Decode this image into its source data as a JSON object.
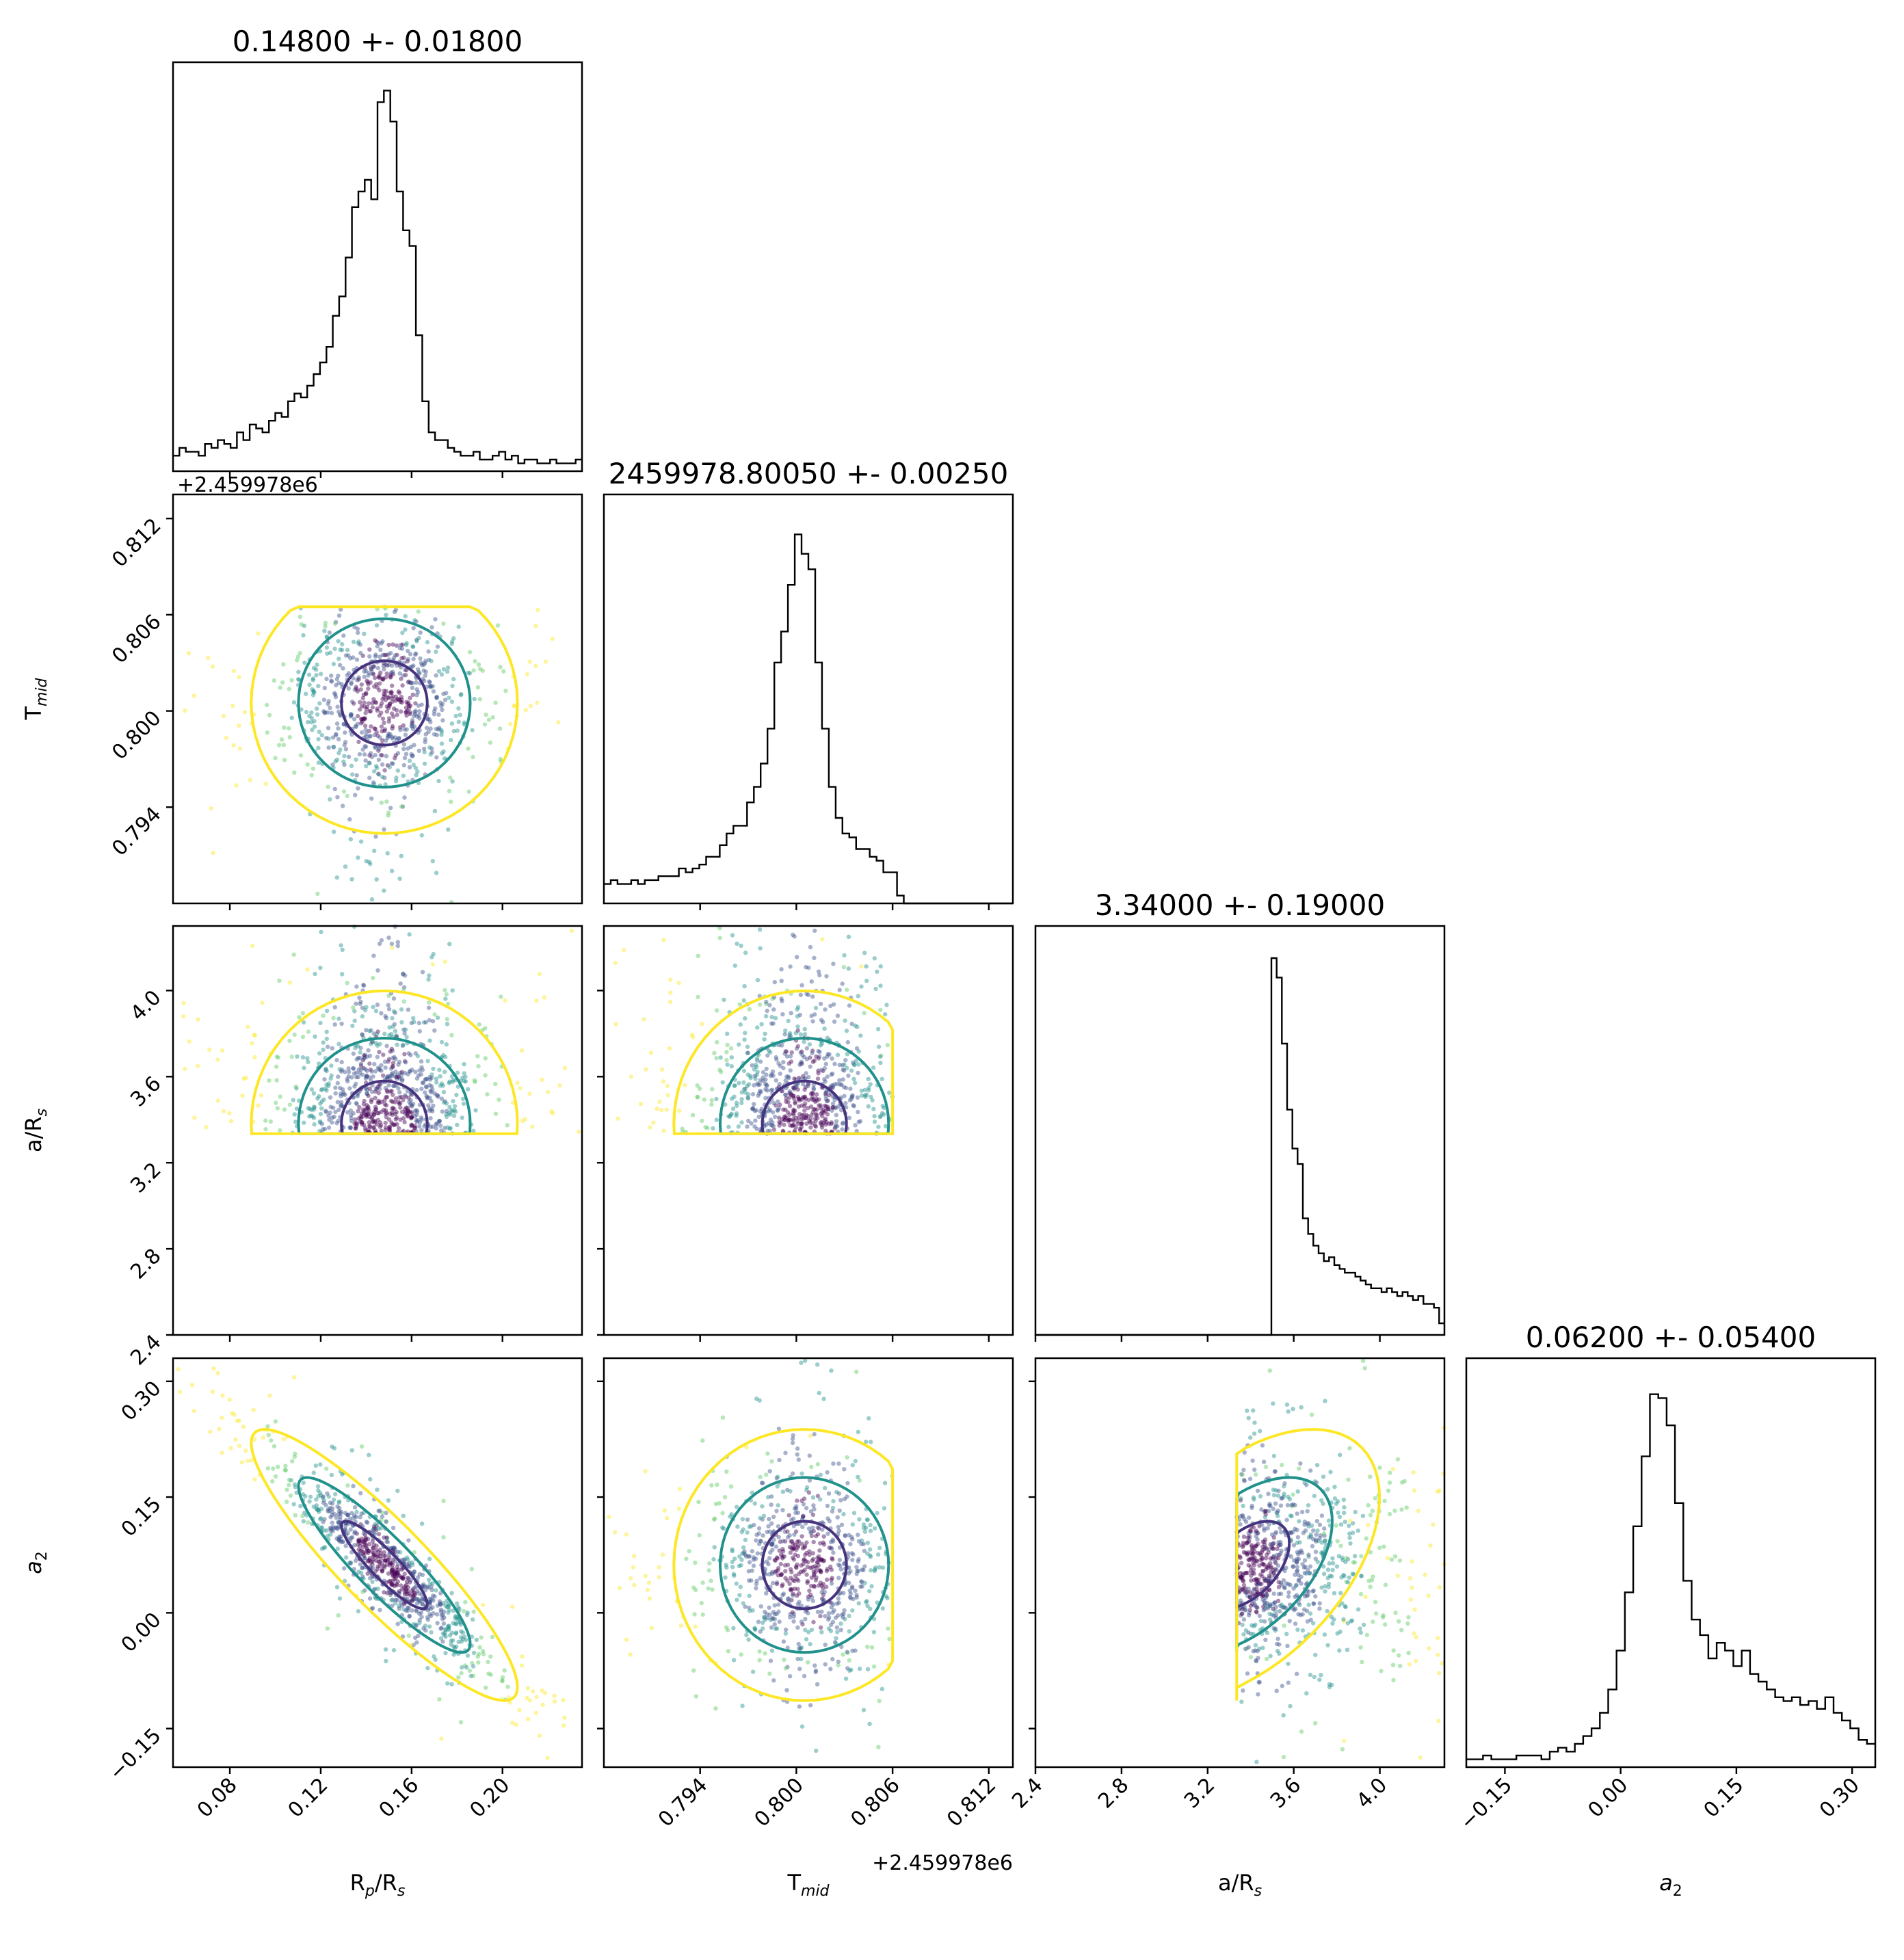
{
  "chart_data": {
    "type": "corner",
    "parameters": [
      {
        "key": "rp",
        "label": "R",
        "sub": "p",
        "label_suffix": "/R",
        "label_suffix_sub": "s",
        "range": [
          0.055,
          0.235
        ],
        "ticks": [
          "0.08",
          "0.12",
          "0.16",
          "0.20"
        ],
        "tick_values": [
          0.08,
          0.12,
          0.16,
          0.2
        ],
        "offset": "",
        "title": "0.14800 +- 0.01800",
        "median": 0.148,
        "sigma": 0.018
      },
      {
        "key": "tmid",
        "label": "T",
        "sub": "mid",
        "label_suffix": "",
        "label_suffix_sub": "",
        "range": [
          0.788,
          0.8135
        ],
        "ticks": [
          "0.794",
          "0.800",
          "0.806",
          "0.812"
        ],
        "tick_values": [
          0.794,
          0.8,
          0.806,
          0.812
        ],
        "offset": "+2.459978e6",
        "title": "2459978.80050 +- 0.00250",
        "median": 0.8005,
        "sigma": 0.0025
      },
      {
        "key": "ars",
        "label": "a/R",
        "sub": "s",
        "label_suffix": "",
        "label_suffix_sub": "",
        "range": [
          2.4,
          4.3
        ],
        "ticks": [
          "2.4",
          "2.8",
          "3.2",
          "3.6",
          "4.0"
        ],
        "tick_values": [
          2.4,
          2.8,
          3.2,
          3.6,
          4.0
        ],
        "offset": "",
        "title": "3.34000 +- 0.19000",
        "median": 3.34,
        "sigma": 0.19
      },
      {
        "key": "a2",
        "label": "a",
        "sub": "2",
        "label_suffix": "",
        "label_suffix_sub": "",
        "italic": true,
        "range": [
          -0.2,
          0.33
        ],
        "ticks": [
          "−0.15",
          "0.00",
          "0.15",
          "0.30"
        ],
        "tick_values": [
          -0.15,
          0.0,
          0.15,
          0.3
        ],
        "offset": "",
        "title": "0.06200 +- 0.05400",
        "median": 0.062,
        "sigma": 0.054
      }
    ],
    "histograms": {
      "rp": [
        0.04,
        0.06,
        0.05,
        0.05,
        0.04,
        0.07,
        0.06,
        0.08,
        0.07,
        0.06,
        0.1,
        0.08,
        0.12,
        0.11,
        0.1,
        0.13,
        0.15,
        0.14,
        0.18,
        0.2,
        0.19,
        0.22,
        0.25,
        0.28,
        0.32,
        0.4,
        0.45,
        0.55,
        0.68,
        0.72,
        0.75,
        0.7,
        0.95,
        0.98,
        0.9,
        0.72,
        0.62,
        0.58,
        0.35,
        0.18,
        0.1,
        0.08,
        0.08,
        0.06,
        0.05,
        0.04,
        0.04,
        0.05,
        0.03,
        0.03,
        0.04,
        0.05,
        0.03,
        0.04,
        0.02,
        0.03,
        0.03,
        0.02,
        0.02,
        0.03,
        0.02,
        0.02,
        0.02,
        0.03
      ],
      "tmid": [
        0.05,
        0.06,
        0.05,
        0.05,
        0.06,
        0.05,
        0.06,
        0.06,
        0.07,
        0.07,
        0.07,
        0.09,
        0.08,
        0.09,
        0.1,
        0.12,
        0.12,
        0.15,
        0.18,
        0.2,
        0.2,
        0.26,
        0.3,
        0.36,
        0.45,
        0.62,
        0.7,
        0.82,
        0.95,
        0.9,
        0.86,
        0.62,
        0.45,
        0.3,
        0.22,
        0.18,
        0.17,
        0.14,
        0.14,
        0.12,
        0.11,
        0.08,
        0.08,
        0.02,
        0.0,
        0.0,
        0.0,
        0.0,
        0.0,
        0.0,
        0.0,
        0.0,
        0.0,
        0.0,
        0.0,
        0.0,
        0.0,
        0.0,
        0.0,
        0.0
      ],
      "ars": [
        0.0,
        0.0,
        0.0,
        0.0,
        0.0,
        0.0,
        0.0,
        0.0,
        0.0,
        0.0,
        0.0,
        0.0,
        0.0,
        0.0,
        0.0,
        0.0,
        0.0,
        0.0,
        0.0,
        0.0,
        0.0,
        0.0,
        0.0,
        0.0,
        0.0,
        0.0,
        0.0,
        0.0,
        0.0,
        0.0,
        0.0,
        0.0,
        0.0,
        0.0,
        0.0,
        0.0,
        0.0,
        0.0,
        0.0,
        0.0,
        0.0,
        0.0,
        0.0,
        0.0,
        0.0,
        0.97,
        0.92,
        0.75,
        0.58,
        0.48,
        0.44,
        0.3,
        0.26,
        0.23,
        0.21,
        0.19,
        0.2,
        0.18,
        0.17,
        0.16,
        0.16,
        0.15,
        0.14,
        0.13,
        0.12,
        0.12,
        0.11,
        0.12,
        0.11,
        0.1,
        0.11,
        0.1,
        0.09,
        0.1,
        0.08,
        0.08,
        0.07,
        0.03
      ],
      "a2": [
        0.02,
        0.02,
        0.03,
        0.02,
        0.02,
        0.02,
        0.03,
        0.03,
        0.03,
        0.02,
        0.04,
        0.05,
        0.04,
        0.06,
        0.08,
        0.1,
        0.14,
        0.2,
        0.3,
        0.45,
        0.62,
        0.8,
        0.96,
        0.95,
        0.88,
        0.68,
        0.48,
        0.38,
        0.34,
        0.28,
        0.32,
        0.3,
        0.26,
        0.3,
        0.24,
        0.22,
        0.2,
        0.18,
        0.17,
        0.18,
        0.16,
        0.17,
        0.15,
        0.18,
        0.14,
        0.12,
        0.1,
        0.07,
        0.06
      ]
    },
    "pairs": [
      {
        "x": "rp",
        "y": "tmid",
        "x_clip": [
          0.055,
          0.235
        ],
        "y_clip": [
          0.788,
          0.8065
        ],
        "rho": 0,
        "sx": 0.018,
        "sy": 0.0025,
        "cx": 0.148,
        "cy": 0.8005
      },
      {
        "x": "rp",
        "y": "ars",
        "x_clip": [
          0.055,
          0.235
        ],
        "y_clip": [
          3.335,
          4.3
        ],
        "rho": 0,
        "sx": 0.018,
        "sy": 0.19,
        "cx": 0.148,
        "cy": 3.38
      },
      {
        "x": "tmid",
        "y": "ars",
        "x_clip": [
          0.788,
          0.806
        ],
        "y_clip": [
          3.335,
          4.3
        ],
        "rho": 0,
        "sx": 0.0025,
        "sy": 0.19,
        "cx": 0.8005,
        "cy": 3.38
      },
      {
        "x": "rp",
        "y": "a2",
        "x_clip": [
          0.055,
          0.235
        ],
        "y_clip": [
          -0.2,
          0.33
        ],
        "rho": -0.9,
        "sx": 0.018,
        "sy": 0.054,
        "cx": 0.148,
        "cy": 0.062
      },
      {
        "x": "tmid",
        "y": "a2",
        "x_clip": [
          0.788,
          0.806
        ],
        "y_clip": [
          -0.2,
          0.33
        ],
        "rho": 0,
        "sx": 0.0025,
        "sy": 0.054,
        "cx": 0.8005,
        "cy": 0.062
      },
      {
        "x": "ars",
        "y": "a2",
        "x_clip": [
          3.335,
          4.3
        ],
        "y_clip": [
          -0.2,
          0.33
        ],
        "rho": 0.5,
        "sx": 0.19,
        "sy": 0.054,
        "cx": 3.38,
        "cy": 0.062
      }
    ],
    "contour_colors": {
      "inner": "#46337e",
      "middle": "#21918c",
      "outer": "#fde725"
    },
    "point_colors": [
      "#440154",
      "#3b528b",
      "#21918c",
      "#5ec962",
      "#fde725"
    ],
    "grid": false,
    "legend": "none"
  }
}
